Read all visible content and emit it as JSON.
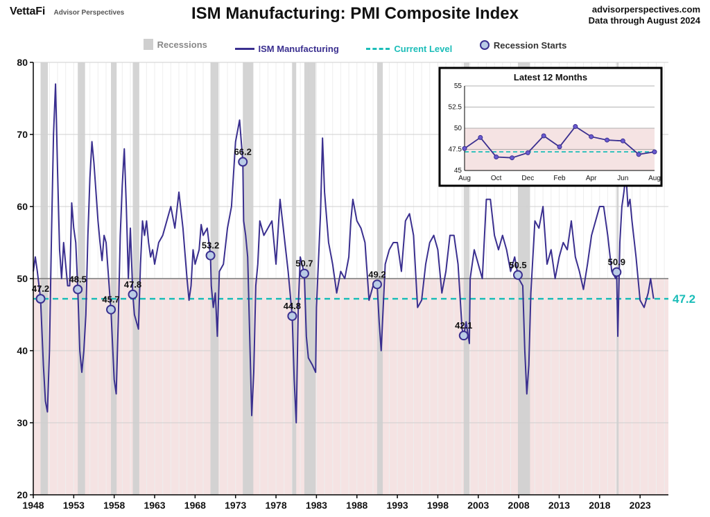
{
  "header": {
    "brand_main": "VettaFi",
    "brand_sub": "Advisor Perspectives",
    "title": "ISM Manufacturing: PMI Composite Index",
    "source_line1": "advisorperspectives.com",
    "source_line2": "Data through August 2024"
  },
  "legend": {
    "recessions": "Recessions",
    "ism": "ISM Manufacturing",
    "current": "Current Level",
    "starts": "Recession Starts",
    "rec_swatch_color": "#cfcfcf",
    "line_color": "#3a2f8f",
    "dash_color": "#1bbdb8",
    "dot_fill": "#b9cbe6",
    "dot_stroke": "#3a2f8f"
  },
  "chart": {
    "type": "line",
    "xlim": [
      1948,
      2026.5
    ],
    "ylim": [
      20,
      80
    ],
    "y_ticks": [
      20,
      30,
      40,
      50,
      60,
      70,
      80
    ],
    "x_ticks": [
      1948,
      1953,
      1958,
      1963,
      1968,
      1973,
      1978,
      1983,
      1988,
      1993,
      1998,
      2003,
      2008,
      2013,
      2018,
      2023
    ],
    "background_color": "#ffffff",
    "grid_v_color": "#eeeeee",
    "grid_h_color": "#cfcfcf",
    "shade_below_50_color": "#f5e3e3",
    "axis_line_color": "#000000",
    "line_color": "#3a2f8f",
    "line_width": 2,
    "current_level": 47.2,
    "current_line_color": "#1bbdb8",
    "current_line_dash": "8 6",
    "recession_bar_color": "#cfcfcf",
    "recessions": [
      [
        1948.9,
        1949.8
      ],
      [
        1953.5,
        1954.4
      ],
      [
        1957.6,
        1958.3
      ],
      [
        1960.3,
        1961.1
      ],
      [
        1969.9,
        1970.9
      ],
      [
        1973.9,
        1975.2
      ],
      [
        1980.0,
        1980.5
      ],
      [
        1981.5,
        1982.9
      ],
      [
        1990.5,
        1991.2
      ],
      [
        2001.2,
        2001.9
      ],
      [
        2007.9,
        2009.4
      ],
      [
        2020.1,
        2020.35
      ]
    ],
    "markers": [
      {
        "year": 1948.9,
        "value": 47.2,
        "label": "47.2"
      },
      {
        "year": 1953.5,
        "value": 48.5,
        "label": "48.5"
      },
      {
        "year": 1957.6,
        "value": 45.7,
        "label": "45.7"
      },
      {
        "year": 1960.3,
        "value": 47.8,
        "label": "47.8"
      },
      {
        "year": 1969.9,
        "value": 53.2,
        "label": "53.2"
      },
      {
        "year": 1973.9,
        "value": 66.2,
        "label": "66.2"
      },
      {
        "year": 1980.0,
        "value": 44.8,
        "label": "44.8"
      },
      {
        "year": 1981.5,
        "value": 50.7,
        "label": "50.7"
      },
      {
        "year": 1990.5,
        "value": 49.2,
        "label": "49.2"
      },
      {
        "year": 2001.2,
        "value": 42.1,
        "label": "42.1"
      },
      {
        "year": 2007.9,
        "value": 50.5,
        "label": "50.5"
      },
      {
        "year": 2020.1,
        "value": 50.9,
        "label": "50.9"
      }
    ],
    "marker_fill": "#b9cbe6",
    "marker_stroke": "#3a2f8f",
    "marker_radius": 6,
    "series": [
      {
        "x": 1948.0,
        "y": 51
      },
      {
        "x": 1948.25,
        "y": 53
      },
      {
        "x": 1948.5,
        "y": 51
      },
      {
        "x": 1948.9,
        "y": 47.2
      },
      {
        "x": 1949.25,
        "y": 38
      },
      {
        "x": 1949.5,
        "y": 33
      },
      {
        "x": 1949.75,
        "y": 31.5
      },
      {
        "x": 1950.0,
        "y": 40
      },
      {
        "x": 1950.25,
        "y": 56
      },
      {
        "x": 1950.5,
        "y": 70
      },
      {
        "x": 1950.75,
        "y": 77
      },
      {
        "x": 1951.0,
        "y": 65
      },
      {
        "x": 1951.25,
        "y": 54
      },
      {
        "x": 1951.5,
        "y": 50
      },
      {
        "x": 1951.75,
        "y": 55
      },
      {
        "x": 1952.0,
        "y": 52
      },
      {
        "x": 1952.25,
        "y": 49
      },
      {
        "x": 1952.5,
        "y": 49
      },
      {
        "x": 1952.75,
        "y": 60.5
      },
      {
        "x": 1953.0,
        "y": 57
      },
      {
        "x": 1953.25,
        "y": 55
      },
      {
        "x": 1953.5,
        "y": 48.5
      },
      {
        "x": 1953.75,
        "y": 40
      },
      {
        "x": 1954.0,
        "y": 37
      },
      {
        "x": 1954.25,
        "y": 40
      },
      {
        "x": 1954.5,
        "y": 45
      },
      {
        "x": 1954.75,
        "y": 56
      },
      {
        "x": 1955.0,
        "y": 64
      },
      {
        "x": 1955.25,
        "y": 69
      },
      {
        "x": 1955.5,
        "y": 66
      },
      {
        "x": 1955.75,
        "y": 62
      },
      {
        "x": 1956.0,
        "y": 58
      },
      {
        "x": 1956.25,
        "y": 55
      },
      {
        "x": 1956.5,
        "y": 52.5
      },
      {
        "x": 1956.75,
        "y": 56
      },
      {
        "x": 1957.0,
        "y": 55
      },
      {
        "x": 1957.25,
        "y": 51
      },
      {
        "x": 1957.5,
        "y": 47
      },
      {
        "x": 1957.6,
        "y": 45.7
      },
      {
        "x": 1957.75,
        "y": 42
      },
      {
        "x": 1958.0,
        "y": 36
      },
      {
        "x": 1958.25,
        "y": 34
      },
      {
        "x": 1958.5,
        "y": 44
      },
      {
        "x": 1958.75,
        "y": 56
      },
      {
        "x": 1959.0,
        "y": 63
      },
      {
        "x": 1959.25,
        "y": 68
      },
      {
        "x": 1959.5,
        "y": 60
      },
      {
        "x": 1959.75,
        "y": 50
      },
      {
        "x": 1960.0,
        "y": 57
      },
      {
        "x": 1960.3,
        "y": 47.8
      },
      {
        "x": 1960.5,
        "y": 45
      },
      {
        "x": 1960.75,
        "y": 44
      },
      {
        "x": 1961.0,
        "y": 43
      },
      {
        "x": 1961.25,
        "y": 52
      },
      {
        "x": 1961.5,
        "y": 58
      },
      {
        "x": 1961.75,
        "y": 56
      },
      {
        "x": 1962.0,
        "y": 58
      },
      {
        "x": 1962.25,
        "y": 55
      },
      {
        "x": 1962.5,
        "y": 53
      },
      {
        "x": 1962.75,
        "y": 54
      },
      {
        "x": 1963.0,
        "y": 52
      },
      {
        "x": 1963.5,
        "y": 55
      },
      {
        "x": 1964.0,
        "y": 56
      },
      {
        "x": 1964.5,
        "y": 58
      },
      {
        "x": 1965.0,
        "y": 60
      },
      {
        "x": 1965.5,
        "y": 57
      },
      {
        "x": 1966.0,
        "y": 62
      },
      {
        "x": 1966.5,
        "y": 57
      },
      {
        "x": 1967.0,
        "y": 50
      },
      {
        "x": 1967.25,
        "y": 47
      },
      {
        "x": 1967.5,
        "y": 49
      },
      {
        "x": 1967.75,
        "y": 54
      },
      {
        "x": 1968.0,
        "y": 52
      },
      {
        "x": 1968.5,
        "y": 54
      },
      {
        "x": 1968.75,
        "y": 57.5
      },
      {
        "x": 1969.0,
        "y": 56
      },
      {
        "x": 1969.5,
        "y": 57
      },
      {
        "x": 1969.9,
        "y": 53.2
      },
      {
        "x": 1970.0,
        "y": 49
      },
      {
        "x": 1970.25,
        "y": 46
      },
      {
        "x": 1970.5,
        "y": 48
      },
      {
        "x": 1970.75,
        "y": 42
      },
      {
        "x": 1971.0,
        "y": 51
      },
      {
        "x": 1971.5,
        "y": 52
      },
      {
        "x": 1972.0,
        "y": 57
      },
      {
        "x": 1972.5,
        "y": 60
      },
      {
        "x": 1973.0,
        "y": 69
      },
      {
        "x": 1973.5,
        "y": 72
      },
      {
        "x": 1973.9,
        "y": 66.2
      },
      {
        "x": 1974.0,
        "y": 58
      },
      {
        "x": 1974.25,
        "y": 56
      },
      {
        "x": 1974.5,
        "y": 53
      },
      {
        "x": 1974.75,
        "y": 42
      },
      {
        "x": 1975.0,
        "y": 31
      },
      {
        "x": 1975.25,
        "y": 37
      },
      {
        "x": 1975.5,
        "y": 49
      },
      {
        "x": 1975.75,
        "y": 52
      },
      {
        "x": 1976.0,
        "y": 58
      },
      {
        "x": 1976.5,
        "y": 56
      },
      {
        "x": 1977.0,
        "y": 57
      },
      {
        "x": 1977.5,
        "y": 58
      },
      {
        "x": 1978.0,
        "y": 52
      },
      {
        "x": 1978.5,
        "y": 61
      },
      {
        "x": 1979.0,
        "y": 56
      },
      {
        "x": 1979.5,
        "y": 51
      },
      {
        "x": 1980.0,
        "y": 44.8
      },
      {
        "x": 1980.25,
        "y": 36
      },
      {
        "x": 1980.5,
        "y": 30
      },
      {
        "x": 1980.75,
        "y": 46
      },
      {
        "x": 1981.0,
        "y": 53
      },
      {
        "x": 1981.5,
        "y": 50.7
      },
      {
        "x": 1981.75,
        "y": 42
      },
      {
        "x": 1982.0,
        "y": 39
      },
      {
        "x": 1982.5,
        "y": 38
      },
      {
        "x": 1982.9,
        "y": 37
      },
      {
        "x": 1983.0,
        "y": 46
      },
      {
        "x": 1983.5,
        "y": 59
      },
      {
        "x": 1983.75,
        "y": 69.5
      },
      {
        "x": 1984.0,
        "y": 62
      },
      {
        "x": 1984.5,
        "y": 55
      },
      {
        "x": 1985.0,
        "y": 52
      },
      {
        "x": 1985.5,
        "y": 48
      },
      {
        "x": 1986.0,
        "y": 51
      },
      {
        "x": 1986.5,
        "y": 50
      },
      {
        "x": 1987.0,
        "y": 53
      },
      {
        "x": 1987.25,
        "y": 58
      },
      {
        "x": 1987.5,
        "y": 61
      },
      {
        "x": 1988.0,
        "y": 58
      },
      {
        "x": 1988.5,
        "y": 57
      },
      {
        "x": 1989.0,
        "y": 55
      },
      {
        "x": 1989.5,
        "y": 47
      },
      {
        "x": 1990.0,
        "y": 49
      },
      {
        "x": 1990.5,
        "y": 49.2
      },
      {
        "x": 1990.75,
        "y": 44
      },
      {
        "x": 1991.0,
        "y": 40
      },
      {
        "x": 1991.25,
        "y": 46
      },
      {
        "x": 1991.5,
        "y": 52
      },
      {
        "x": 1992.0,
        "y": 54
      },
      {
        "x": 1992.5,
        "y": 55
      },
      {
        "x": 1993.0,
        "y": 55
      },
      {
        "x": 1993.5,
        "y": 51
      },
      {
        "x": 1994.0,
        "y": 58
      },
      {
        "x": 1994.5,
        "y": 59
      },
      {
        "x": 1995.0,
        "y": 56
      },
      {
        "x": 1995.5,
        "y": 46
      },
      {
        "x": 1996.0,
        "y": 47
      },
      {
        "x": 1996.5,
        "y": 52
      },
      {
        "x": 1997.0,
        "y": 55
      },
      {
        "x": 1997.5,
        "y": 56
      },
      {
        "x": 1998.0,
        "y": 54
      },
      {
        "x": 1998.5,
        "y": 48
      },
      {
        "x": 1999.0,
        "y": 51
      },
      {
        "x": 1999.5,
        "y": 56
      },
      {
        "x": 2000.0,
        "y": 56
      },
      {
        "x": 2000.5,
        "y": 52
      },
      {
        "x": 2001.0,
        "y": 43
      },
      {
        "x": 2001.2,
        "y": 42.1
      },
      {
        "x": 2001.5,
        "y": 44
      },
      {
        "x": 2001.9,
        "y": 41
      },
      {
        "x": 2002.0,
        "y": 50
      },
      {
        "x": 2002.5,
        "y": 54
      },
      {
        "x": 2003.0,
        "y": 52
      },
      {
        "x": 2003.5,
        "y": 50
      },
      {
        "x": 2004.0,
        "y": 61
      },
      {
        "x": 2004.5,
        "y": 61
      },
      {
        "x": 2005.0,
        "y": 56
      },
      {
        "x": 2005.5,
        "y": 54
      },
      {
        "x": 2006.0,
        "y": 56
      },
      {
        "x": 2006.5,
        "y": 54
      },
      {
        "x": 2007.0,
        "y": 51
      },
      {
        "x": 2007.5,
        "y": 53
      },
      {
        "x": 2007.9,
        "y": 50.5
      },
      {
        "x": 2008.0,
        "y": 50
      },
      {
        "x": 2008.5,
        "y": 49
      },
      {
        "x": 2008.75,
        "y": 40
      },
      {
        "x": 2009.0,
        "y": 34
      },
      {
        "x": 2009.25,
        "y": 38
      },
      {
        "x": 2009.5,
        "y": 48
      },
      {
        "x": 2010.0,
        "y": 58
      },
      {
        "x": 2010.5,
        "y": 57
      },
      {
        "x": 2011.0,
        "y": 60
      },
      {
        "x": 2011.5,
        "y": 52
      },
      {
        "x": 2012.0,
        "y": 54
      },
      {
        "x": 2012.5,
        "y": 50
      },
      {
        "x": 2013.0,
        "y": 53
      },
      {
        "x": 2013.5,
        "y": 55
      },
      {
        "x": 2014.0,
        "y": 54
      },
      {
        "x": 2014.5,
        "y": 58
      },
      {
        "x": 2015.0,
        "y": 53
      },
      {
        "x": 2015.5,
        "y": 51
      },
      {
        "x": 2016.0,
        "y": 48.5
      },
      {
        "x": 2016.5,
        "y": 52
      },
      {
        "x": 2017.0,
        "y": 56
      },
      {
        "x": 2017.5,
        "y": 58
      },
      {
        "x": 2018.0,
        "y": 60
      },
      {
        "x": 2018.5,
        "y": 60
      },
      {
        "x": 2019.0,
        "y": 56
      },
      {
        "x": 2019.5,
        "y": 51
      },
      {
        "x": 2020.0,
        "y": 50
      },
      {
        "x": 2020.1,
        "y": 50.9
      },
      {
        "x": 2020.25,
        "y": 42
      },
      {
        "x": 2020.5,
        "y": 55
      },
      {
        "x": 2020.75,
        "y": 60
      },
      {
        "x": 2021.0,
        "y": 62
      },
      {
        "x": 2021.25,
        "y": 64.5
      },
      {
        "x": 2021.5,
        "y": 60
      },
      {
        "x": 2021.75,
        "y": 61
      },
      {
        "x": 2022.0,
        "y": 58
      },
      {
        "x": 2022.5,
        "y": 53
      },
      {
        "x": 2023.0,
        "y": 47
      },
      {
        "x": 2023.5,
        "y": 46
      },
      {
        "x": 2024.0,
        "y": 48
      },
      {
        "x": 2024.3,
        "y": 50
      },
      {
        "x": 2024.67,
        "y": 47.2
      }
    ]
  },
  "inset": {
    "title": "Latest 12 Months",
    "ylim": [
      45,
      55
    ],
    "y_ticks": [
      45,
      47.5,
      50,
      52.5,
      55
    ],
    "x_labels": [
      "Aug",
      "Oct",
      "Dec",
      "Feb",
      "Apr",
      "Jun",
      "Aug"
    ],
    "shade_below_50_color": "#f5e3e3",
    "line_color": "#3a2f8f",
    "dash_color": "#1bbdb8",
    "marker_fill": "#6a5ad0",
    "points": [
      47.6,
      48.9,
      46.6,
      46.5,
      47.1,
      49.1,
      47.8,
      50.2,
      49.0,
      48.6,
      48.5,
      46.9,
      47.2
    ],
    "current": 47.2
  }
}
